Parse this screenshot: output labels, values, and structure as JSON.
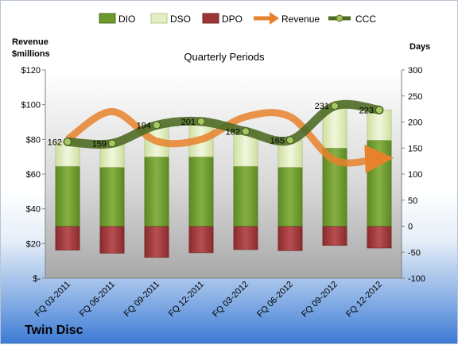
{
  "company": "Twin Disc",
  "chart_data": {
    "type": "bar",
    "title": "Quarterly Periods",
    "left_axis_label_line1": "Revenue",
    "left_axis_label_line2": "$millions",
    "right_axis_label": "Days",
    "categories": [
      "FQ 03-2011",
      "FQ 06-2011",
      "FQ 09-2011",
      "FQ 12-2011",
      "FQ 03-2012",
      "FQ 06-2012",
      "FQ 09-2012",
      "FQ 12-2012"
    ],
    "left_ticks": [
      "$-",
      "$20",
      "$40",
      "$60",
      "$80",
      "$100",
      "$120"
    ],
    "right_ticks": [
      "-100",
      "-50",
      "0",
      "50",
      "100",
      "150",
      "200",
      "250",
      "300"
    ],
    "right_ylim": [
      -100,
      300
    ],
    "left_ylim": [
      0,
      120
    ],
    "series": [
      {
        "name": "DIO",
        "type": "stacked-bar",
        "color": "#6e9a2c",
        "values": [
          115,
          113,
          133,
          133,
          115,
          113,
          150,
          165
        ]
      },
      {
        "name": "DSO",
        "type": "stacked-bar",
        "color": "#e3eec3",
        "values": [
          47,
          46,
          61,
          68,
          67,
          52,
          81,
          58
        ]
      },
      {
        "name": "DPO",
        "type": "negative-bar",
        "color": "#9e3436",
        "values": [
          -46,
          -52,
          -60,
          -51,
          -45,
          -47,
          -37,
          -42
        ]
      },
      {
        "name": "Revenue",
        "type": "line",
        "color": "#e8812c",
        "values": [
          80,
          96,
          79,
          80,
          93,
          93,
          68,
          69
        ]
      },
      {
        "name": "CCC",
        "type": "line",
        "color": "#4e6b25",
        "values": [
          162,
          159,
          194,
          201,
          182,
          165,
          231,
          223
        ]
      }
    ],
    "ccc_labels": [
      "162",
      "159",
      "194",
      "201",
      "182",
      "165",
      "231",
      "223"
    ],
    "legend_placement": "top",
    "grid": false
  }
}
